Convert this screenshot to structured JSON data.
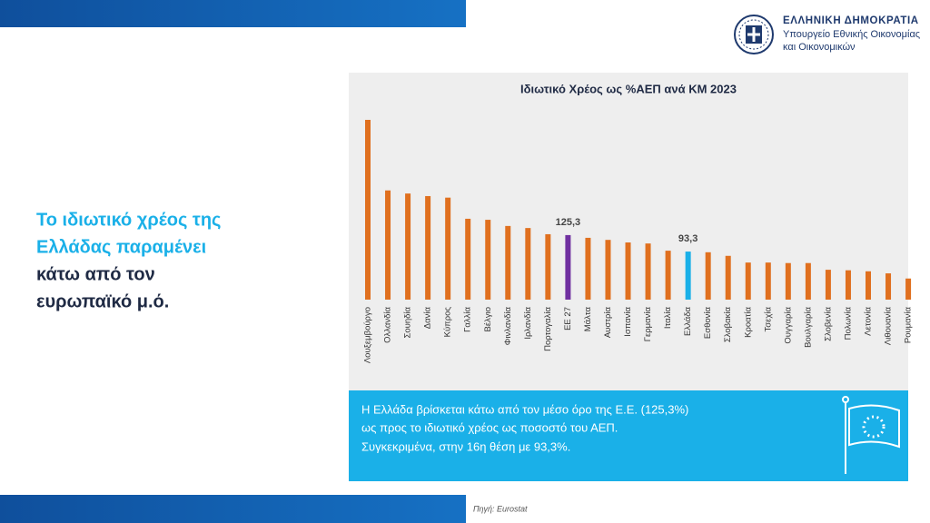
{
  "header": {
    "title": "ΕΛΛΗΝΙΚΗ ΔΗΜΟΚΡΑΤΙΑ",
    "subtitle_lines": [
      "Υπουργείο Εθνικής Οικονομίας",
      "και Οικονομικών"
    ]
  },
  "headline": {
    "lines": [
      "Το ιδιωτικό χρέος της",
      "Ελλάδας παραμένει",
      "κάτω από τον",
      "ευρωπαϊκό μ.ό."
    ]
  },
  "chart_data": {
    "type": "bar",
    "title": "Ιδιωτικό Χρέος ως %ΑΕΠ ανά ΚΜ 2023",
    "categories": [
      "Λουξεμβούργο",
      "Ολλανδία",
      "Σουηδία",
      "Δανία",
      "Κύπρος",
      "Γαλλία",
      "Βέλγιο",
      "Φινλανδία",
      "Ιρλανδία",
      "Πορτογαλία",
      "ΕΕ 27",
      "Μάλτα",
      "Αυστρία",
      "Ισπανία",
      "Γερμανία",
      "Ιταλία",
      "Ελλάδα",
      "Εσθονία",
      "Σλοβακία",
      "Κροατία",
      "Τσεχία",
      "Ουγγαρία",
      "Βουλγαρία",
      "Σλοβενία",
      "Πολωνία",
      "Λετονία",
      "Λιθουανία",
      "Ρουμανία"
    ],
    "values": [
      349,
      212,
      206,
      201,
      198,
      157,
      155,
      143,
      139,
      127,
      125.3,
      120,
      116,
      111,
      109,
      95,
      93.3,
      92,
      85,
      72,
      72,
      71,
      71,
      58,
      57,
      55,
      51,
      41
    ],
    "value_labels": [
      null,
      null,
      null,
      null,
      null,
      null,
      null,
      null,
      null,
      null,
      "125,3",
      null,
      null,
      null,
      null,
      null,
      "93,3",
      null,
      null,
      null,
      null,
      null,
      null,
      null,
      null,
      null,
      null,
      null
    ],
    "colors": [
      "#e0701f",
      "#e0701f",
      "#e0701f",
      "#e0701f",
      "#e0701f",
      "#e0701f",
      "#e0701f",
      "#e0701f",
      "#e0701f",
      "#e0701f",
      "#7030a0",
      "#e0701f",
      "#e0701f",
      "#e0701f",
      "#e0701f",
      "#e0701f",
      "#1ab0e8",
      "#e0701f",
      "#e0701f",
      "#e0701f",
      "#e0701f",
      "#e0701f",
      "#e0701f",
      "#e0701f",
      "#e0701f",
      "#e0701f",
      "#e0701f",
      "#e0701f"
    ]
  },
  "info": {
    "lines": [
      "Η Ελλάδα βρίσκεται κάτω από τον μέσο όρο της Ε.Ε. (125,3%)",
      "ως προς το ιδιωτικό χρέος ως ποσοστό του ΑΕΠ.",
      "Συγκεκριμένα, στην 16η θέση με 93,3%."
    ]
  },
  "source": "Πηγή: Eurostat"
}
